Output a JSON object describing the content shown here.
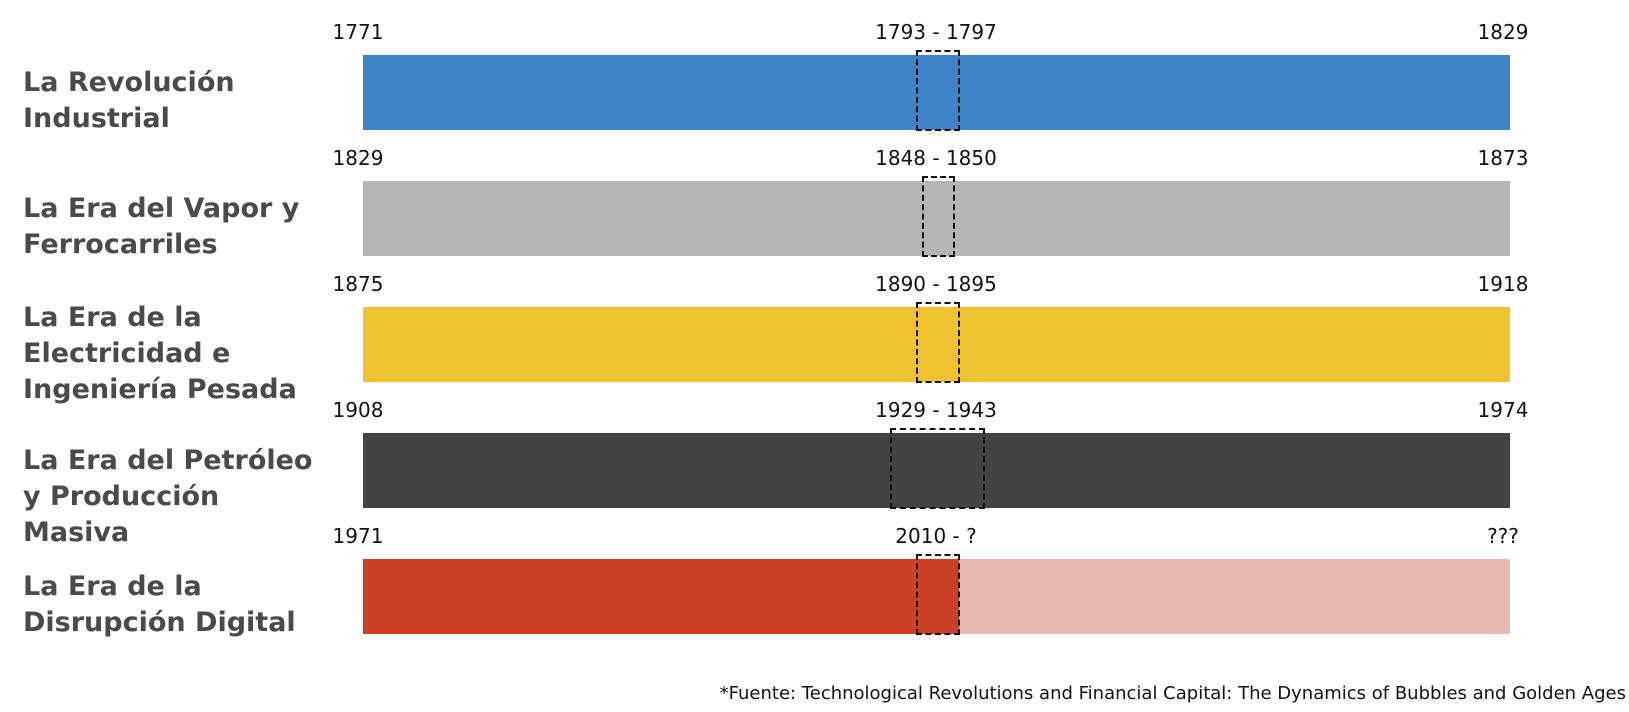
{
  "eras": [
    {
      "label": "La Revolución Industrial",
      "start": "1771",
      "end": "1829",
      "bubble": "1793 - 1797",
      "color": "#3e84c6",
      "fill_color": "#3e84c6",
      "progress": 1.0
    },
    {
      "label": "La Era del Vapor y Ferrocarriles",
      "start": "1829",
      "end": "1873",
      "bubble": "1848 - 1850",
      "color": "#b5b5b5",
      "fill_color": "#b5b5b5",
      "progress": 1.0
    },
    {
      "label": "La Era de la Electricidad e Ingeniería Pesada",
      "start": "1875",
      "end": "1918",
      "bubble": "1890 - 1895",
      "color": "#f0c232",
      "fill_color": "#f0c232",
      "progress": 1.0
    },
    {
      "label": "La Era del Petróleo y Producción Masiva",
      "start": "1908",
      "end": "1974",
      "bubble": "1929 - 1943",
      "color": "#434343",
      "fill_color": "#434343",
      "progress": 1.0
    },
    {
      "label": "La Era de la Disrupción Digital",
      "start": "1971",
      "end": "???",
      "bubble": "2010 - ?",
      "color": "#e5b8b0",
      "fill_color": "#cc4125",
      "progress": 0.52
    }
  ],
  "footnote": "*Fuente: Technological Revolutions and Financial Capital: The Dynamics of Bubbles and Golden Ages"
}
